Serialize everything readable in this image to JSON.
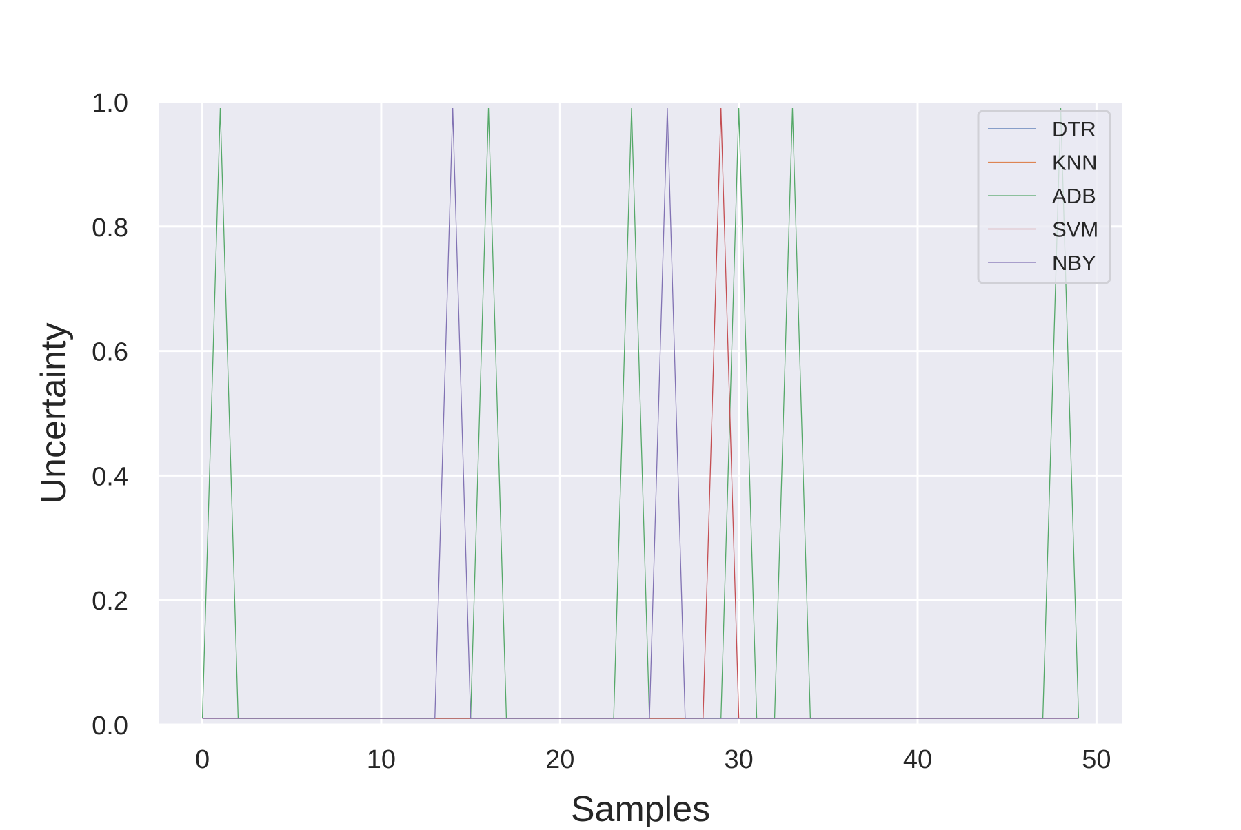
{
  "chart_data": {
    "type": "line",
    "title": "",
    "xlabel": "Samples",
    "ylabel": "Uncertainty",
    "xlim": [
      -2.45,
      51.45
    ],
    "ylim": [
      0.0,
      1.0
    ],
    "xticks": [
      "0",
      "10",
      "20",
      "30",
      "40",
      "50"
    ],
    "yticks": [
      "0.0",
      "0.2",
      "0.4",
      "0.6",
      "0.8",
      "1.0"
    ],
    "grid": true,
    "background": "#eaeaf2",
    "legend_position": "top-right",
    "x": [
      0,
      1,
      2,
      3,
      4,
      5,
      6,
      7,
      8,
      9,
      10,
      11,
      12,
      13,
      14,
      15,
      16,
      17,
      18,
      19,
      20,
      21,
      22,
      23,
      24,
      25,
      26,
      27,
      28,
      29,
      30,
      31,
      32,
      33,
      34,
      35,
      36,
      37,
      38,
      39,
      40,
      41,
      42,
      43,
      44,
      45,
      46,
      47,
      48,
      49
    ],
    "series": [
      {
        "name": "DTR",
        "color": "#4c72b0",
        "values": [
          0.01,
          0.01,
          0.01,
          0.01,
          0.01,
          0.01,
          0.01,
          0.01,
          0.01,
          0.01,
          0.01,
          0.01,
          0.01,
          0.01,
          0.01,
          0.01,
          0.01,
          0.01,
          0.01,
          0.01,
          0.01,
          0.01,
          0.01,
          0.01,
          0.01,
          0.01,
          0.01,
          0.01,
          0.01,
          0.01,
          0.01,
          0.01,
          0.01,
          0.01,
          0.01,
          0.01,
          0.01,
          0.01,
          0.01,
          0.01,
          0.01,
          0.01,
          0.01,
          0.01,
          0.01,
          0.01,
          0.01,
          0.01,
          0.01,
          0.01
        ]
      },
      {
        "name": "KNN",
        "color": "#dd8452",
        "values": [
          0.01,
          0.01,
          0.01,
          0.01,
          0.01,
          0.01,
          0.01,
          0.01,
          0.01,
          0.01,
          0.01,
          0.01,
          0.01,
          0.01,
          0.01,
          0.01,
          0.01,
          0.01,
          0.01,
          0.01,
          0.01,
          0.01,
          0.01,
          0.01,
          0.01,
          0.01,
          0.01,
          0.01,
          0.01,
          0.01,
          0.01,
          0.01,
          0.01,
          0.01,
          0.01,
          0.01,
          0.01,
          0.01,
          0.01,
          0.01,
          0.01,
          0.01,
          0.01,
          0.01,
          0.01,
          0.01,
          0.01,
          0.01,
          0.01,
          0.01
        ]
      },
      {
        "name": "ADB",
        "color": "#55a868",
        "values": [
          0.01,
          0.99,
          0.01,
          0.01,
          0.01,
          0.01,
          0.01,
          0.01,
          0.01,
          0.01,
          0.01,
          0.01,
          0.01,
          0.01,
          0.01,
          0.01,
          0.99,
          0.01,
          0.01,
          0.01,
          0.01,
          0.01,
          0.01,
          0.01,
          0.99,
          0.01,
          0.01,
          0.01,
          0.01,
          0.01,
          0.99,
          0.01,
          0.01,
          0.99,
          0.01,
          0.01,
          0.01,
          0.01,
          0.01,
          0.01,
          0.01,
          0.01,
          0.01,
          0.01,
          0.01,
          0.01,
          0.01,
          0.01,
          0.99,
          0.01
        ]
      },
      {
        "name": "SVM",
        "color": "#c44e52",
        "values": [
          0.01,
          0.01,
          0.01,
          0.01,
          0.01,
          0.01,
          0.01,
          0.01,
          0.01,
          0.01,
          0.01,
          0.01,
          0.01,
          0.01,
          0.01,
          0.01,
          0.01,
          0.01,
          0.01,
          0.01,
          0.01,
          0.01,
          0.01,
          0.01,
          0.01,
          0.01,
          0.01,
          0.01,
          0.01,
          0.99,
          0.01,
          0.01,
          0.01,
          0.01,
          0.01,
          0.01,
          0.01,
          0.01,
          0.01,
          0.01,
          0.01,
          0.01,
          0.01,
          0.01,
          0.01,
          0.01,
          0.01,
          0.01,
          0.01,
          0.01
        ]
      },
      {
        "name": "NBY",
        "color": "#8172b3",
        "values": [
          0.01,
          0.01,
          0.01,
          0.01,
          0.01,
          0.01,
          0.01,
          0.01,
          0.01,
          0.01,
          0.01,
          0.01,
          0.01,
          0.01,
          0.99,
          0.01,
          0.01,
          0.01,
          0.01,
          0.01,
          0.01,
          0.01,
          0.01,
          0.01,
          0.01,
          0.01,
          0.99,
          0.01,
          0.01,
          0.01,
          0.01,
          0.01,
          0.01,
          0.01,
          0.01,
          0.01,
          0.01,
          0.01,
          0.01,
          0.01,
          0.01,
          0.01,
          0.01,
          0.01,
          0.01,
          0.01,
          0.01,
          0.01,
          0.01,
          0.01
        ]
      }
    ]
  }
}
